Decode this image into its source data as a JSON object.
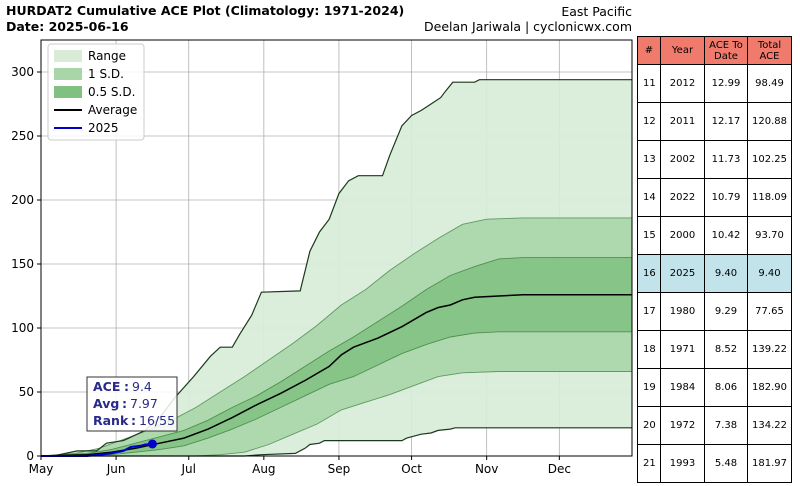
{
  "header": {
    "title": "HURDAT2 Cumulative ACE Plot (Climatology: 1971-2024)",
    "date": "Date: 2025-06-16",
    "basin": "East Pacific",
    "credit": "Deelan Jariwala | cyclonicwx.com"
  },
  "chart_data": {
    "type": "area",
    "x_unit": "day of year (May 1 = 121)",
    "x_tick_labels": [
      "May",
      "Jun",
      "Jul",
      "Aug",
      "Sep",
      "Oct",
      "Nov",
      "Dec"
    ],
    "x_ticks": [
      121,
      152,
      182,
      213,
      244,
      274,
      305,
      335
    ],
    "xlim": [
      121,
      365
    ],
    "ylim": [
      0,
      325
    ],
    "y_ticks": [
      0,
      50,
      100,
      150,
      200,
      250,
      300
    ],
    "grid": true,
    "legend_position": "top-left",
    "legend": [
      "Range",
      "1 S.D.",
      "0.5 S.D.",
      "Average",
      "2025"
    ],
    "colors": {
      "range": "#d8ecd8",
      "sd1": "#a8d6a8",
      "sd05": "#80c080",
      "edge": "#1a3a1a",
      "average": "#000000",
      "current": "#0000cc",
      "table_header": "#f07b6d",
      "table_highlight": "#c2e3ea"
    },
    "range_max": [
      [
        121,
        0
      ],
      [
        126,
        0
      ],
      [
        136,
        4
      ],
      [
        144,
        4
      ],
      [
        148,
        10
      ],
      [
        155,
        12
      ],
      [
        164,
        20
      ],
      [
        170,
        30
      ],
      [
        176,
        45
      ],
      [
        184,
        62
      ],
      [
        191,
        78
      ],
      [
        195,
        85
      ],
      [
        200,
        85
      ],
      [
        203,
        95
      ],
      [
        208,
        110
      ],
      [
        212,
        128
      ],
      [
        228,
        129
      ],
      [
        232,
        160
      ],
      [
        236,
        175
      ],
      [
        240,
        185
      ],
      [
        244,
        205
      ],
      [
        248,
        215
      ],
      [
        252,
        219
      ],
      [
        262,
        219
      ],
      [
        265,
        235
      ],
      [
        270,
        258
      ],
      [
        274,
        266
      ],
      [
        278,
        270
      ],
      [
        282,
        275
      ],
      [
        286,
        280
      ],
      [
        288,
        285
      ],
      [
        291,
        292
      ],
      [
        300,
        292
      ],
      [
        302,
        294
      ],
      [
        365,
        294
      ]
    ],
    "range_min": [
      [
        121,
        0
      ],
      [
        205,
        0
      ],
      [
        212,
        1
      ],
      [
        226,
        2
      ],
      [
        230,
        6
      ],
      [
        232,
        9
      ],
      [
        236,
        10
      ],
      [
        238,
        12
      ],
      [
        270,
        12
      ],
      [
        272,
        14
      ],
      [
        278,
        17
      ],
      [
        282,
        18
      ],
      [
        285,
        20
      ],
      [
        290,
        21
      ],
      [
        292,
        22
      ],
      [
        365,
        22
      ]
    ],
    "sd1_upper": [
      [
        121,
        0
      ],
      [
        135,
        2
      ],
      [
        145,
        6
      ],
      [
        155,
        13
      ],
      [
        165,
        20
      ],
      [
        175,
        28
      ],
      [
        185,
        38
      ],
      [
        195,
        50
      ],
      [
        205,
        62
      ],
      [
        215,
        75
      ],
      [
        225,
        88
      ],
      [
        235,
        102
      ],
      [
        245,
        118
      ],
      [
        255,
        130
      ],
      [
        265,
        145
      ],
      [
        275,
        158
      ],
      [
        285,
        170
      ],
      [
        295,
        181
      ],
      [
        305,
        185
      ],
      [
        320,
        186
      ],
      [
        365,
        186
      ]
    ],
    "sd1_lower": [
      [
        121,
        0
      ],
      [
        185,
        0
      ],
      [
        195,
        1
      ],
      [
        205,
        3
      ],
      [
        215,
        9
      ],
      [
        225,
        17
      ],
      [
        235,
        25
      ],
      [
        245,
        36
      ],
      [
        255,
        42
      ],
      [
        265,
        48
      ],
      [
        275,
        55
      ],
      [
        285,
        62
      ],
      [
        295,
        65
      ],
      [
        310,
        66
      ],
      [
        365,
        66
      ]
    ],
    "sd05_upper": [
      [
        121,
        0
      ],
      [
        140,
        2
      ],
      [
        150,
        5
      ],
      [
        160,
        10
      ],
      [
        170,
        15
      ],
      [
        180,
        20
      ],
      [
        190,
        28
      ],
      [
        200,
        38
      ],
      [
        210,
        47
      ],
      [
        220,
        58
      ],
      [
        230,
        70
      ],
      [
        240,
        82
      ],
      [
        250,
        93
      ],
      [
        260,
        105
      ],
      [
        270,
        117
      ],
      [
        280,
        130
      ],
      [
        290,
        141
      ],
      [
        300,
        148
      ],
      [
        310,
        154
      ],
      [
        320,
        155
      ],
      [
        365,
        155
      ]
    ],
    "sd05_lower": [
      [
        121,
        0
      ],
      [
        150,
        1
      ],
      [
        160,
        3
      ],
      [
        170,
        5
      ],
      [
        180,
        8
      ],
      [
        190,
        14
      ],
      [
        200,
        21
      ],
      [
        210,
        29
      ],
      [
        220,
        38
      ],
      [
        230,
        47
      ],
      [
        240,
        56
      ],
      [
        250,
        62
      ],
      [
        260,
        71
      ],
      [
        270,
        80
      ],
      [
        280,
        87
      ],
      [
        290,
        93
      ],
      [
        300,
        96
      ],
      [
        310,
        97
      ],
      [
        365,
        97
      ]
    ],
    "average": [
      [
        121,
        0
      ],
      [
        140,
        1
      ],
      [
        150,
        3
      ],
      [
        160,
        6
      ],
      [
        170,
        10
      ],
      [
        180,
        14
      ],
      [
        190,
        21
      ],
      [
        200,
        30
      ],
      [
        210,
        40
      ],
      [
        220,
        49
      ],
      [
        230,
        59
      ],
      [
        240,
        70
      ],
      [
        245,
        79
      ],
      [
        250,
        85
      ],
      [
        260,
        92
      ],
      [
        270,
        101
      ],
      [
        280,
        112
      ],
      [
        285,
        116
      ],
      [
        290,
        118
      ],
      [
        295,
        122
      ],
      [
        300,
        124
      ],
      [
        310,
        125
      ],
      [
        320,
        126
      ],
      [
        365,
        126
      ]
    ],
    "current_2025": [
      [
        121,
        0
      ],
      [
        140,
        0
      ],
      [
        145,
        1
      ],
      [
        150,
        2
      ],
      [
        155,
        4
      ],
      [
        158,
        7
      ],
      [
        162,
        8
      ],
      [
        164,
        9
      ],
      [
        167,
        9.4
      ]
    ],
    "info_box": {
      "ace_label": "ACE",
      "ace_value": "9.4",
      "avg_label": "Avg",
      "avg_value": "7.97",
      "rank_label": "Rank",
      "rank_value": "16/55"
    }
  },
  "table": {
    "headers": [
      "#",
      "Year",
      "ACE To Date",
      "Total ACE"
    ],
    "highlight_year": "2025",
    "rows": [
      [
        "11",
        "2012",
        "12.99",
        "98.49"
      ],
      [
        "12",
        "2011",
        "12.17",
        "120.88"
      ],
      [
        "13",
        "2002",
        "11.73",
        "102.25"
      ],
      [
        "14",
        "2022",
        "10.79",
        "118.09"
      ],
      [
        "15",
        "2000",
        "10.42",
        "93.70"
      ],
      [
        "16",
        "2025",
        "9.40",
        "9.40"
      ],
      [
        "17",
        "1980",
        "9.29",
        "77.65"
      ],
      [
        "18",
        "1971",
        "8.52",
        "139.22"
      ],
      [
        "19",
        "1984",
        "8.06",
        "182.90"
      ],
      [
        "20",
        "1972",
        "7.38",
        "134.22"
      ],
      [
        "21",
        "1993",
        "5.48",
        "181.97"
      ]
    ]
  }
}
